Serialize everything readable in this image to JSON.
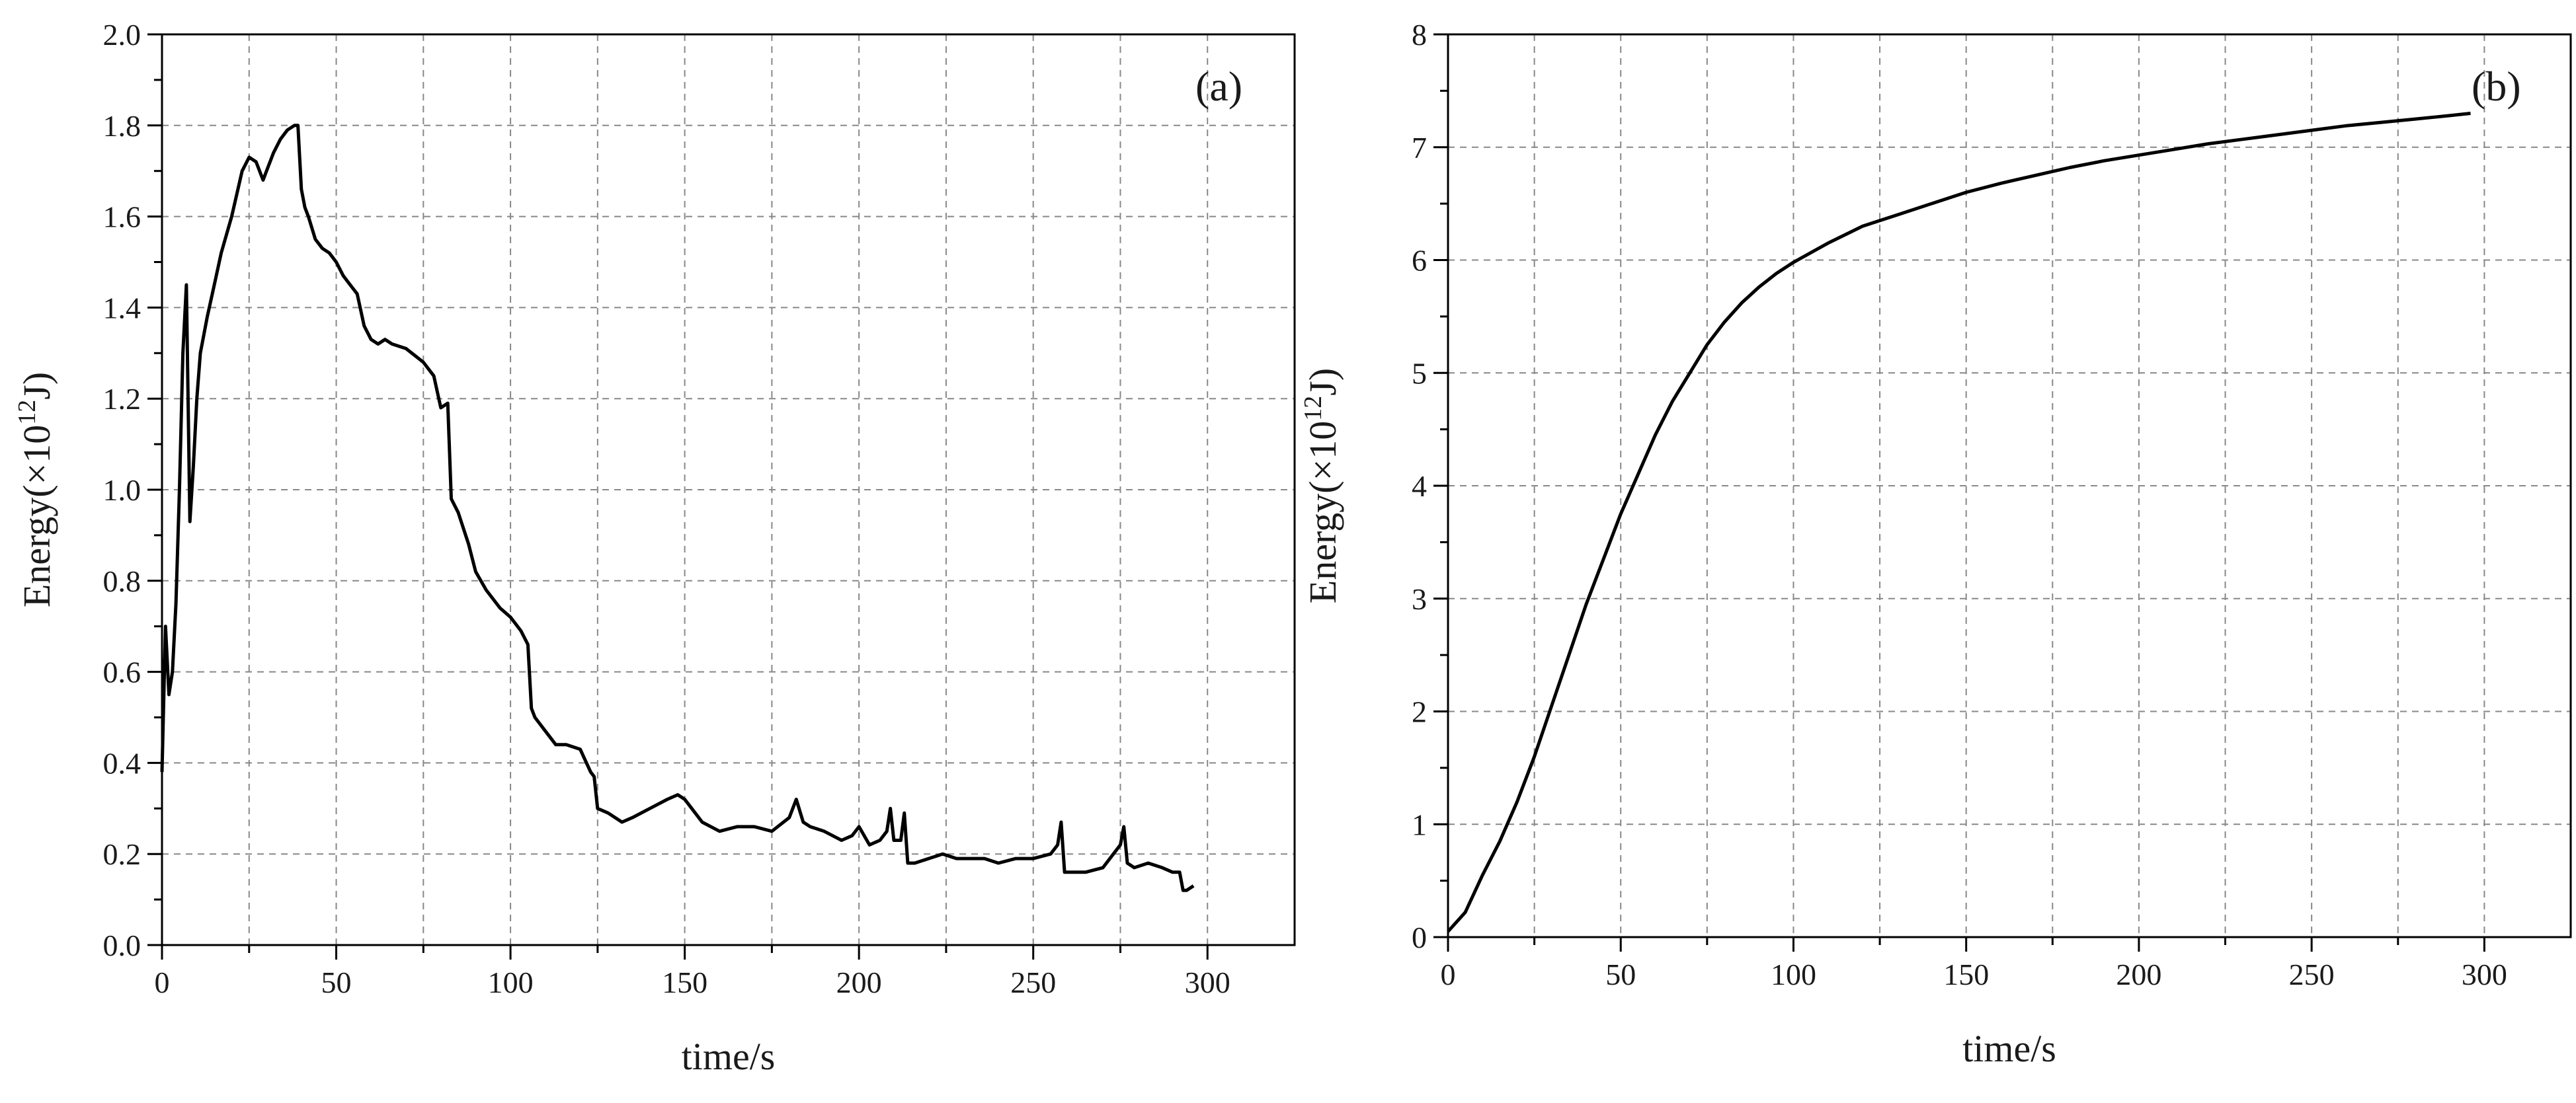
{
  "chart_data": [
    {
      "type": "line",
      "panel_label": "(a)",
      "title": "",
      "xlabel": "time/s",
      "ylabel_main": "Energy(×10",
      "ylabel_exp": "12",
      "ylabel_tail": "J)",
      "xlim": [
        0,
        325
      ],
      "ylim": [
        0,
        2.0
      ],
      "xticks": [
        0,
        50,
        100,
        150,
        200,
        250,
        300
      ],
      "xtick_labels": [
        "0",
        "50",
        "100",
        "150",
        "200",
        "250",
        "300"
      ],
      "yticks": [
        0,
        0.2,
        0.4,
        0.6,
        0.8,
        1.0,
        1.2,
        1.4,
        1.6,
        1.8,
        2.0
      ],
      "ytick_labels": [
        "0.0",
        "0.2",
        "0.4",
        "0.6",
        "0.8",
        "1.0",
        "1.2",
        "1.4",
        "1.6",
        "1.8",
        "2.0"
      ],
      "grid": true,
      "series": [
        {
          "name": "Energy",
          "x": [
            0,
            1,
            2,
            3,
            4,
            5,
            6,
            7,
            8,
            9,
            10,
            11,
            13,
            15,
            17,
            20,
            23,
            25,
            27,
            29,
            30,
            32,
            34,
            36,
            38,
            39,
            40,
            41,
            42,
            44,
            46,
            48,
            50,
            52,
            54,
            56,
            58,
            60,
            62,
            64,
            66,
            70,
            75,
            78,
            80,
            82,
            83,
            85,
            88,
            90,
            93,
            97,
            100,
            103,
            105,
            106,
            107,
            110,
            113,
            116,
            120,
            123,
            124,
            125,
            128,
            132,
            135,
            140,
            145,
            148,
            150,
            152,
            155,
            160,
            165,
            170,
            175,
            180,
            182,
            184,
            186,
            190,
            195,
            198,
            200,
            203,
            206,
            208,
            209,
            210,
            212,
            213,
            214,
            216,
            220,
            224,
            228,
            232,
            236,
            240,
            245,
            250,
            255,
            257,
            258,
            259,
            260,
            265,
            270,
            273,
            275,
            276,
            277,
            279,
            283,
            287,
            290,
            292,
            293,
            294,
            296
          ],
          "y": [
            0.38,
            0.7,
            0.55,
            0.6,
            0.75,
            1.0,
            1.3,
            1.45,
            0.93,
            1.05,
            1.2,
            1.3,
            1.38,
            1.45,
            1.52,
            1.6,
            1.7,
            1.73,
            1.72,
            1.68,
            1.7,
            1.74,
            1.77,
            1.79,
            1.8,
            1.8,
            1.66,
            1.62,
            1.6,
            1.55,
            1.53,
            1.52,
            1.5,
            1.47,
            1.45,
            1.43,
            1.36,
            1.33,
            1.32,
            1.33,
            1.32,
            1.31,
            1.28,
            1.25,
            1.18,
            1.19,
            0.98,
            0.95,
            0.88,
            0.82,
            0.78,
            0.74,
            0.72,
            0.69,
            0.66,
            0.52,
            0.5,
            0.47,
            0.44,
            0.44,
            0.43,
            0.38,
            0.37,
            0.3,
            0.29,
            0.27,
            0.28,
            0.3,
            0.32,
            0.33,
            0.32,
            0.3,
            0.27,
            0.25,
            0.26,
            0.26,
            0.25,
            0.28,
            0.32,
            0.27,
            0.26,
            0.25,
            0.23,
            0.24,
            0.26,
            0.22,
            0.23,
            0.25,
            0.3,
            0.23,
            0.23,
            0.29,
            0.18,
            0.18,
            0.19,
            0.2,
            0.19,
            0.19,
            0.19,
            0.18,
            0.19,
            0.19,
            0.2,
            0.22,
            0.27,
            0.16,
            0.16,
            0.16,
            0.17,
            0.2,
            0.22,
            0.26,
            0.18,
            0.17,
            0.18,
            0.17,
            0.16,
            0.16,
            0.12,
            0.12,
            0.13
          ]
        }
      ]
    },
    {
      "type": "line",
      "panel_label": "(b)",
      "title": "",
      "xlabel": "time/s",
      "ylabel_main": "Energy(×10",
      "ylabel_exp": "12",
      "ylabel_tail": "J)",
      "xlim": [
        0,
        325
      ],
      "ylim": [
        0,
        8
      ],
      "xticks": [
        0,
        50,
        100,
        150,
        200,
        250,
        300
      ],
      "xtick_labels": [
        "0",
        "50",
        "100",
        "150",
        "200",
        "250",
        "300"
      ],
      "yticks": [
        0,
        1,
        2,
        3,
        4,
        5,
        6,
        7,
        8
      ],
      "ytick_labels": [
        "0",
        "1",
        "2",
        "3",
        "4",
        "5",
        "6",
        "7",
        "8"
      ],
      "grid": true,
      "series": [
        {
          "name": "Energy",
          "x": [
            0,
            5,
            10,
            15,
            20,
            25,
            30,
            35,
            40,
            45,
            50,
            55,
            60,
            65,
            70,
            75,
            80,
            85,
            90,
            95,
            100,
            110,
            120,
            130,
            140,
            150,
            160,
            170,
            180,
            190,
            200,
            210,
            220,
            230,
            240,
            250,
            260,
            270,
            280,
            290,
            296
          ],
          "y": [
            0.05,
            0.22,
            0.55,
            0.85,
            1.2,
            1.6,
            2.05,
            2.5,
            2.95,
            3.35,
            3.75,
            4.1,
            4.45,
            4.75,
            5.0,
            5.25,
            5.45,
            5.62,
            5.76,
            5.88,
            5.98,
            6.15,
            6.3,
            6.4,
            6.5,
            6.6,
            6.68,
            6.75,
            6.82,
            6.88,
            6.93,
            6.98,
            7.03,
            7.07,
            7.11,
            7.15,
            7.19,
            7.22,
            7.25,
            7.28,
            7.3
          ]
        }
      ]
    }
  ]
}
